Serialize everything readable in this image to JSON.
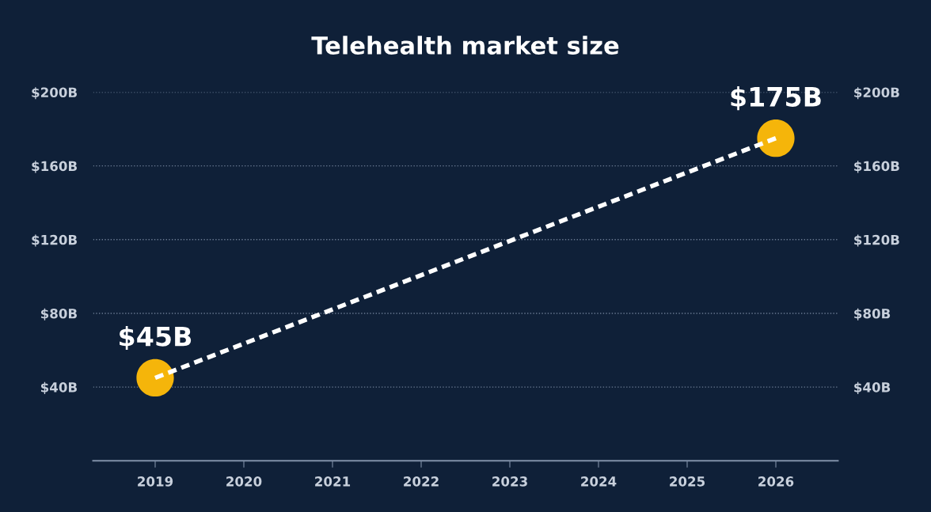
{
  "chart_data": {
    "type": "line",
    "title": "Telehealth market size",
    "x": [
      2019,
      2026
    ],
    "series": [
      {
        "color": "#ffffff",
        "values": [
          45,
          175
        ]
      },
      {
        "type": "scatter",
        "color": "#f5b50a",
        "values": [
          45,
          175
        ],
        "value_labels": [
          "$45B",
          "$175B"
        ]
      }
    ],
    "xlim": [
      2018.3,
      2026.7
    ],
    "xticks": [
      2019,
      2020,
      2021,
      2022,
      2023,
      2024,
      2025,
      2026
    ],
    "ylim": [
      0,
      200
    ],
    "yticks": [
      {
        "value": 40,
        "label": "$40B"
      },
      {
        "value": 80,
        "label": "$80B"
      },
      {
        "value": 120,
        "label": "$120B"
      },
      {
        "value": 160,
        "label": "$160B"
      },
      {
        "value": 200,
        "label": "$200B"
      }
    ],
    "y2lim": [
      0,
      200
    ],
    "y2ticks": [
      {
        "value": 40,
        "label": "$40B"
      },
      {
        "value": 80,
        "label": "$80B"
      },
      {
        "value": 120,
        "label": "$120B"
      },
      {
        "value": 160,
        "label": "$160B"
      },
      {
        "value": 200,
        "label": "$200B"
      }
    ],
    "grid": "y",
    "legend": false,
    "line_style": "dashed"
  }
}
